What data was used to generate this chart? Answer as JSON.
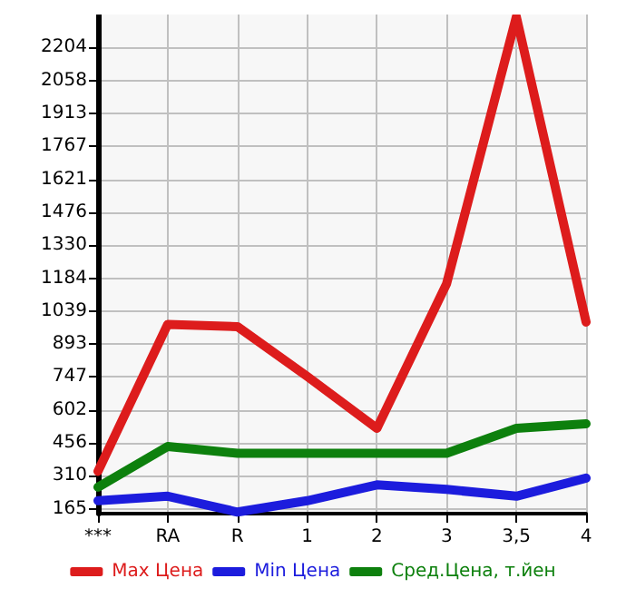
{
  "chart_data": {
    "type": "line",
    "categories": [
      "***",
      "RA",
      "R",
      "1",
      "2",
      "3",
      "3,5",
      "4"
    ],
    "series": [
      {
        "name": "Max Цена",
        "color": "#dd1c1c",
        "values": [
          330,
          980,
          970,
          750,
          520,
          1160,
          2340,
          990
        ]
      },
      {
        "name": "Min Цена",
        "color": "#1c1cdd",
        "values": [
          200,
          220,
          150,
          200,
          270,
          250,
          220,
          300
        ]
      },
      {
        "name": "Сред.Цена, т.йен",
        "color": "#0d800d",
        "values": [
          260,
          440,
          410,
          410,
          410,
          410,
          520,
          540
        ]
      }
    ],
    "ylim": [
      143,
      2350
    ],
    "yticks": [
      165,
      310,
      456,
      602,
      747,
      893,
      1039,
      1184,
      1330,
      1476,
      1621,
      1767,
      1913,
      2058,
      2204
    ],
    "grid": true,
    "legend": "bottom",
    "marker": "none",
    "line_style": "solid"
  }
}
